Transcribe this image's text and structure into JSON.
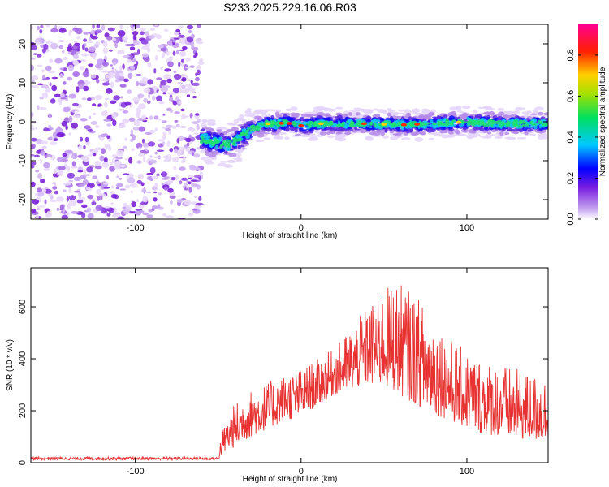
{
  "title": "S233.2025.229.16.06.R03",
  "chart_data": [
    {
      "type": "heatmap",
      "name": "spectrogram",
      "xlabel": "Height of straight line (km)",
      "ylabel": "Frequency (Hz)",
      "xlim": [
        -163,
        149
      ],
      "ylim": [
        -25,
        25
      ],
      "xticks": [
        -100,
        0,
        100
      ],
      "yticks": [
        -20,
        -10,
        0,
        10,
        20
      ],
      "noise_region_x": [
        -163,
        -60
      ],
      "signal_track": {
        "x": [
          -60,
          -55,
          -50,
          -45,
          -40,
          -35,
          -30,
          -25,
          -20,
          -15,
          -10,
          -5,
          0,
          10,
          20,
          40,
          60,
          80,
          100,
          120,
          149
        ],
        "y": [
          -4.5,
          -5,
          -5.5,
          -6,
          -5,
          -3.5,
          -2,
          -1,
          -0.5,
          -0.5,
          -0.3,
          -0.5,
          -1,
          -0.5,
          -0.5,
          -0.5,
          -0.8,
          -0.5,
          0,
          -0.5,
          -0.5
        ]
      },
      "colorbar": {
        "label": "Normalized spectral amplitude",
        "range": [
          0,
          0.95
        ],
        "ticks": [
          0.0,
          0.2,
          0.4,
          0.6,
          0.8
        ],
        "tick_labels": [
          "0.0",
          "0.2",
          "0.4",
          "0.6",
          "0.8"
        ]
      }
    },
    {
      "type": "line",
      "name": "snr",
      "xlabel": "Height of straight line (km)",
      "ylabel": "SNR (10 * v/v)",
      "xlim": [
        -163,
        149
      ],
      "ylim": [
        0,
        750
      ],
      "xticks": [
        -100,
        0,
        100
      ],
      "yticks": [
        0,
        200,
        400,
        600
      ],
      "line_color": "#e83232",
      "envelope": {
        "x": [
          -163,
          -60,
          -50,
          -48,
          -40,
          -30,
          -20,
          -10,
          0,
          10,
          20,
          30,
          40,
          50,
          55,
          60,
          70,
          80,
          90,
          100,
          110,
          120,
          130,
          140,
          149
        ],
        "lo": [
          10,
          10,
          10,
          30,
          60,
          100,
          130,
          160,
          180,
          220,
          260,
          280,
          300,
          290,
          280,
          260,
          220,
          190,
          160,
          130,
          110,
          100,
          90,
          85,
          80
        ],
        "hi": [
          22,
          22,
          22,
          120,
          230,
          280,
          310,
          340,
          360,
          400,
          440,
          520,
          600,
          660,
          700,
          690,
          640,
          560,
          480,
          430,
          400,
          380,
          360,
          340,
          330
        ]
      }
    }
  ]
}
